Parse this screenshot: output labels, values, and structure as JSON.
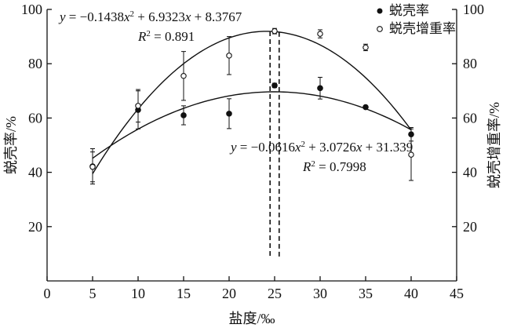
{
  "chart_data": {
    "type": "scatter",
    "xlabel": "盐度/‰",
    "ylabel_left": "蜕壳率/%",
    "ylabel_right": "蜕壳增重率/%",
    "xlim": [
      0,
      45
    ],
    "ylim": [
      0,
      100
    ],
    "x_ticks": [
      0,
      5,
      10,
      15,
      20,
      25,
      30,
      35,
      40,
      45
    ],
    "y_ticks_left": [
      20,
      40,
      60,
      80,
      100
    ],
    "y_ticks_right": [
      20,
      40,
      60,
      80,
      100
    ],
    "grid": false,
    "legend_position": "top-right",
    "series": [
      {
        "name": "蜕壳率",
        "marker": "filled-circle",
        "x": [
          5,
          10,
          15,
          20,
          25,
          30,
          35,
          40
        ],
        "y": [
          42.2,
          63.0,
          61.0,
          61.6,
          72.0,
          71.0,
          64.0,
          54.0
        ],
        "error": [
          6.5,
          7.0,
          3.5,
          5.5,
          0.8,
          4.0,
          0.5,
          2.5
        ]
      },
      {
        "name": "蜕壳增重率",
        "marker": "open-circle",
        "x": [
          5,
          10,
          15,
          20,
          25,
          30,
          35,
          40
        ],
        "y": [
          42.0,
          64.5,
          75.5,
          83.0,
          92.0,
          91.0,
          86.0,
          46.5
        ],
        "error": [
          5.5,
          6.0,
          9.0,
          7.0,
          1.0,
          1.5,
          1.2,
          9.5
        ]
      }
    ],
    "fits": [
      {
        "series": "蜕壳增重率",
        "a": -0.1438,
        "b": 6.9323,
        "c": 8.3767,
        "equation_parts": [
          "y",
          " = −0.1438",
          "x",
          "2",
          " + 6.9323",
          "x",
          " + 8.3767"
        ],
        "r2_parts": [
          "R",
          "2",
          " = 0.891"
        ],
        "x_range": [
          5,
          40
        ]
      },
      {
        "series": "蜕壳率",
        "a": -0.0616,
        "b": 3.0726,
        "c": 31.339,
        "equation_parts": [
          "y",
          " = −0.0616",
          "x",
          "2",
          " + 3.0726",
          "x",
          " + 31.339"
        ],
        "r2_parts": [
          "R",
          "2",
          " = 0.7998"
        ],
        "x_range": [
          5,
          40
        ]
      }
    ],
    "reference_lines_x": [
      24.5,
      25.5
    ],
    "reference_lines_y_bottom": 9
  }
}
